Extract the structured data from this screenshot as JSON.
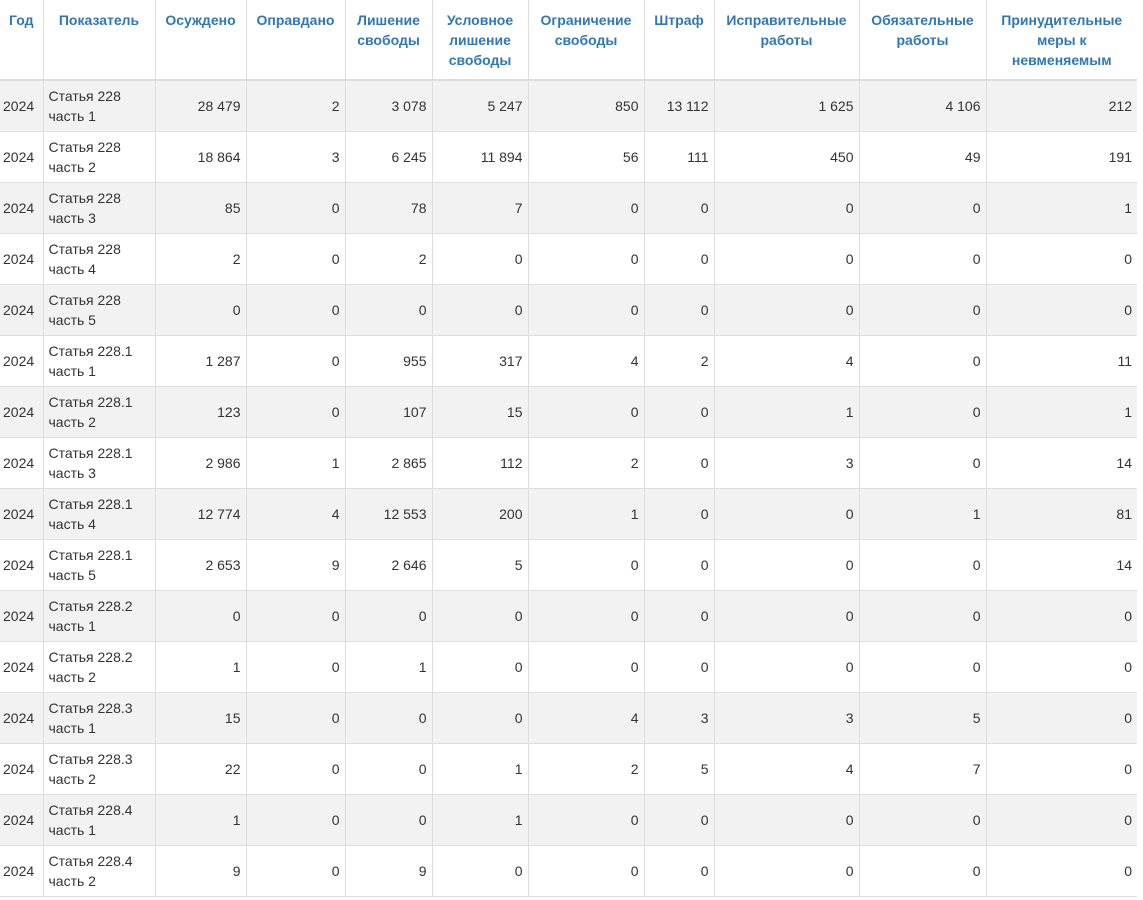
{
  "table": {
    "headers": {
      "year": "Год",
      "indicator": "Показатель",
      "convicted": "Осуждено",
      "acquitted": "Оправдано",
      "deprivation": "Лишение свободы",
      "conditional": "Условное лишение свободы",
      "restriction": "Ограничение свободы",
      "fine": "Штраф",
      "correctional": "Исправительные работы",
      "mandatory": "Обязательные работы",
      "compulsory": "Принудительные меры к невменяемым"
    },
    "rows": [
      {
        "year": "2024",
        "indicator": "Статья 228 часть 1",
        "convicted": "28 479",
        "acquitted": "2",
        "deprivation": "3 078",
        "conditional": "5 247",
        "restriction": "850",
        "fine": "13 112",
        "correctional": "1 625",
        "mandatory": "4 106",
        "compulsory": "212"
      },
      {
        "year": "2024",
        "indicator": "Статья 228 часть 2",
        "convicted": "18 864",
        "acquitted": "3",
        "deprivation": "6 245",
        "conditional": "11 894",
        "restriction": "56",
        "fine": "111",
        "correctional": "450",
        "mandatory": "49",
        "compulsory": "191"
      },
      {
        "year": "2024",
        "indicator": "Статья 228 часть 3",
        "convicted": "85",
        "acquitted": "0",
        "deprivation": "78",
        "conditional": "7",
        "restriction": "0",
        "fine": "0",
        "correctional": "0",
        "mandatory": "0",
        "compulsory": "1"
      },
      {
        "year": "2024",
        "indicator": "Статья 228 часть 4",
        "convicted": "2",
        "acquitted": "0",
        "deprivation": "2",
        "conditional": "0",
        "restriction": "0",
        "fine": "0",
        "correctional": "0",
        "mandatory": "0",
        "compulsory": "0"
      },
      {
        "year": "2024",
        "indicator": "Статья 228 часть 5",
        "convicted": "0",
        "acquitted": "0",
        "deprivation": "0",
        "conditional": "0",
        "restriction": "0",
        "fine": "0",
        "correctional": "0",
        "mandatory": "0",
        "compulsory": "0"
      },
      {
        "year": "2024",
        "indicator": "Статья 228.1 часть 1",
        "convicted": "1 287",
        "acquitted": "0",
        "deprivation": "955",
        "conditional": "317",
        "restriction": "4",
        "fine": "2",
        "correctional": "4",
        "mandatory": "0",
        "compulsory": "11"
      },
      {
        "year": "2024",
        "indicator": "Статья 228.1 часть 2",
        "convicted": "123",
        "acquitted": "0",
        "deprivation": "107",
        "conditional": "15",
        "restriction": "0",
        "fine": "0",
        "correctional": "1",
        "mandatory": "0",
        "compulsory": "1"
      },
      {
        "year": "2024",
        "indicator": "Статья 228.1 часть 3",
        "convicted": "2 986",
        "acquitted": "1",
        "deprivation": "2 865",
        "conditional": "112",
        "restriction": "2",
        "fine": "0",
        "correctional": "3",
        "mandatory": "0",
        "compulsory": "14"
      },
      {
        "year": "2024",
        "indicator": "Статья 228.1 часть 4",
        "convicted": "12 774",
        "acquitted": "4",
        "deprivation": "12 553",
        "conditional": "200",
        "restriction": "1",
        "fine": "0",
        "correctional": "0",
        "mandatory": "1",
        "compulsory": "81"
      },
      {
        "year": "2024",
        "indicator": "Статья 228.1 часть 5",
        "convicted": "2 653",
        "acquitted": "9",
        "deprivation": "2 646",
        "conditional": "5",
        "restriction": "0",
        "fine": "0",
        "correctional": "0",
        "mandatory": "0",
        "compulsory": "14"
      },
      {
        "year": "2024",
        "indicator": "Статья 228.2 часть 1",
        "convicted": "0",
        "acquitted": "0",
        "deprivation": "0",
        "conditional": "0",
        "restriction": "0",
        "fine": "0",
        "correctional": "0",
        "mandatory": "0",
        "compulsory": "0"
      },
      {
        "year": "2024",
        "indicator": "Статья 228.2 часть 2",
        "convicted": "1",
        "acquitted": "0",
        "deprivation": "1",
        "conditional": "0",
        "restriction": "0",
        "fine": "0",
        "correctional": "0",
        "mandatory": "0",
        "compulsory": "0"
      },
      {
        "year": "2024",
        "indicator": "Статья 228.3 часть 1",
        "convicted": "15",
        "acquitted": "0",
        "deprivation": "0",
        "conditional": "0",
        "restriction": "4",
        "fine": "3",
        "correctional": "3",
        "mandatory": "5",
        "compulsory": "0"
      },
      {
        "year": "2024",
        "indicator": "Статья 228.3 часть 2",
        "convicted": "22",
        "acquitted": "0",
        "deprivation": "0",
        "conditional": "1",
        "restriction": "2",
        "fine": "5",
        "correctional": "4",
        "mandatory": "7",
        "compulsory": "0"
      },
      {
        "year": "2024",
        "indicator": "Статья 228.4 часть 1",
        "convicted": "1",
        "acquitted": "0",
        "deprivation": "0",
        "conditional": "1",
        "restriction": "0",
        "fine": "0",
        "correctional": "0",
        "mandatory": "0",
        "compulsory": "0"
      },
      {
        "year": "2024",
        "indicator": "Статья 228.4 часть 2",
        "convicted": "9",
        "acquitted": "0",
        "deprivation": "9",
        "conditional": "0",
        "restriction": "0",
        "fine": "0",
        "correctional": "0",
        "mandatory": "0",
        "compulsory": "0"
      }
    ]
  },
  "colors": {
    "header_link": "#2f78b5",
    "stripe": "#f2f2f2",
    "border": "#dddddd"
  }
}
